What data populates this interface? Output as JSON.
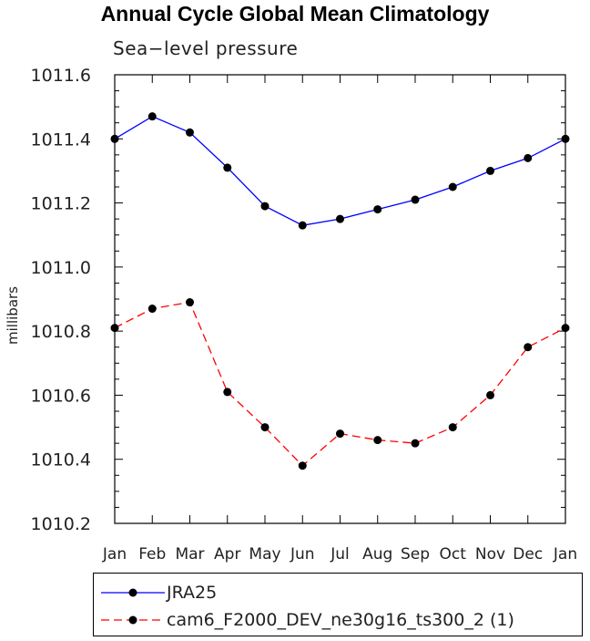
{
  "chart_data": {
    "type": "line",
    "title": "Annual Cycle Global Mean Climatology",
    "subtitle": "Sea−level pressure",
    "ylabel": "millibars",
    "xlabel": "",
    "categories": [
      "Jan",
      "Feb",
      "Mar",
      "Apr",
      "May",
      "Jun",
      "Jul",
      "Aug",
      "Sep",
      "Oct",
      "Nov",
      "Dec",
      "Jan"
    ],
    "ylim": [
      1010.2,
      1011.6
    ],
    "yticks": [
      "1010.2",
      "1010.4",
      "1010.6",
      "1010.8",
      "1011.0",
      "1011.2",
      "1011.4",
      "1011.6"
    ],
    "grid": false,
    "legend_position": "bottom",
    "series": [
      {
        "name": "JRA25",
        "color": "#0000ff",
        "dash": "solid",
        "values": [
          1011.4,
          1011.47,
          1011.42,
          1011.31,
          1011.19,
          1011.13,
          1011.15,
          1011.18,
          1011.21,
          1011.25,
          1011.3,
          1011.34,
          1011.4
        ]
      },
      {
        "name": "cam6_F2000_DEV_ne30g16_ts300_2 (1)",
        "color": "#ff0000",
        "dash": "dashed",
        "values": [
          1010.81,
          1010.87,
          1010.89,
          1010.61,
          1010.5,
          1010.38,
          1010.48,
          1010.46,
          1010.45,
          1010.5,
          1010.6,
          1010.75,
          1010.81
        ]
      }
    ]
  }
}
